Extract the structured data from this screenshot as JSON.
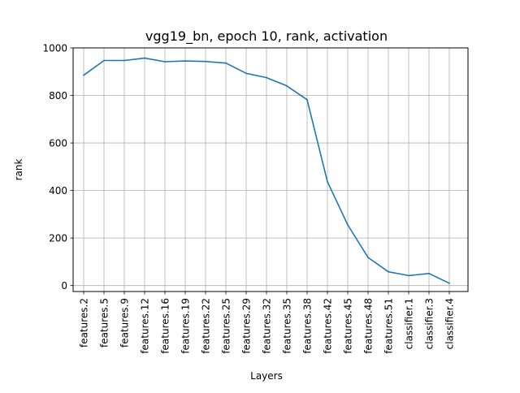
{
  "chart_data": {
    "type": "line",
    "title": "vgg19_bn, epoch 10, rank, activation",
    "xlabel": "Layers",
    "ylabel": "rank",
    "ylim": [
      -25,
      1000
    ],
    "yticks": [
      0,
      200,
      400,
      600,
      800,
      1000
    ],
    "grid": true,
    "legend": "none",
    "categories": [
      "features.2",
      "features.5",
      "features.9",
      "features.12",
      "features.16",
      "features.19",
      "features.22",
      "features.25",
      "features.29",
      "features.32",
      "features.35",
      "features.38",
      "features.42",
      "features.45",
      "features.48",
      "features.51",
      "classifier.1",
      "classifier.3",
      "classifier.4"
    ],
    "series": [
      {
        "color": "#1f77b4",
        "values": [
          885,
          947,
          947,
          957,
          942,
          945,
          943,
          936,
          893,
          875,
          840,
          782,
          437,
          255,
          118,
          58,
          42,
          51,
          10
        ]
      }
    ],
    "colors": {
      "grid": "#b0b0b0",
      "axes": "#000000"
    }
  }
}
